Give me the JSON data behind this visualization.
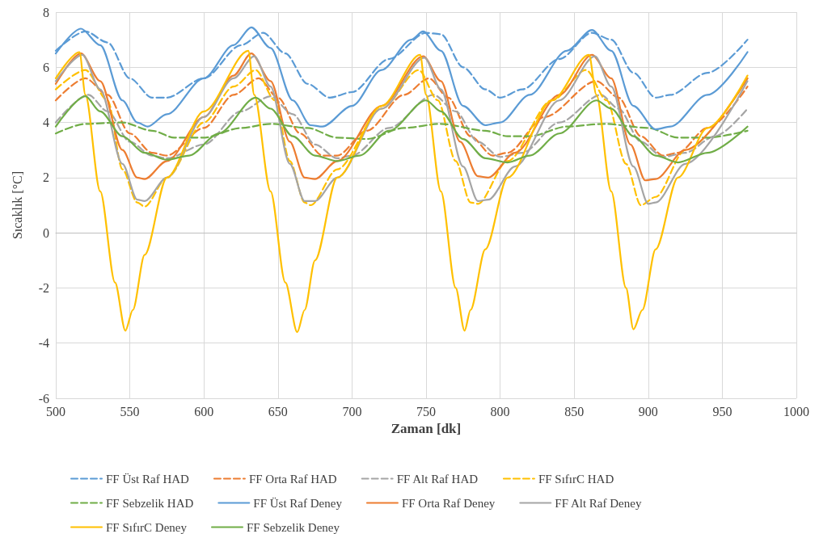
{
  "chart_data": {
    "type": "line",
    "xlabel": "Zaman [dk]",
    "ylabel": "Sıcaklık [°C]",
    "xlim": [
      500,
      1000
    ],
    "xticks": [
      500,
      550,
      600,
      650,
      700,
      750,
      800,
      850,
      900,
      950,
      1000
    ],
    "ylim": [
      -6,
      8
    ],
    "yticks": [
      -6,
      -4,
      -2,
      0,
      2,
      4,
      6,
      8
    ],
    "grid": true,
    "legend": "bottom",
    "marker": "none",
    "series": [
      {
        "name": "FF Üst Raf HAD",
        "color": "#5b9bd5",
        "line_style": "dashed",
        "x": [
          500,
          520,
          535,
          550,
          565,
          575,
          600,
          625,
          640,
          655,
          670,
          685,
          700,
          725,
          750,
          760,
          775,
          790,
          800,
          815,
          840,
          862,
          875,
          890,
          905,
          915,
          940,
          967
        ],
        "values": [
          6.6,
          7.3,
          6.9,
          5.6,
          4.9,
          4.9,
          5.6,
          6.8,
          7.25,
          6.5,
          5.4,
          4.9,
          5.1,
          6.3,
          7.25,
          7.2,
          6.0,
          5.2,
          4.9,
          5.2,
          6.3,
          7.25,
          7.0,
          5.8,
          4.9,
          5.0,
          5.8,
          7.0
        ]
      },
      {
        "name": "FF Orta Raf HAD",
        "color": "#ed7d31",
        "line_style": "dashed",
        "x": [
          500,
          520,
          535,
          550,
          565,
          575,
          600,
          620,
          637,
          650,
          665,
          680,
          690,
          710,
          735,
          752,
          765,
          780,
          795,
          805,
          830,
          865,
          880,
          895,
          910,
          920,
          940,
          967
        ],
        "values": [
          4.8,
          5.6,
          5.0,
          3.6,
          2.9,
          2.8,
          3.8,
          5.0,
          5.6,
          4.9,
          3.6,
          2.8,
          2.8,
          3.7,
          5.0,
          5.6,
          4.9,
          3.5,
          2.8,
          2.9,
          4.2,
          5.5,
          4.9,
          3.5,
          2.8,
          2.9,
          3.8,
          5.3
        ]
      },
      {
        "name": "FF Alt Raf HAD",
        "color": "#a5a5a5",
        "line_style": "dashed",
        "x": [
          500,
          522,
          535,
          550,
          565,
          575,
          600,
          625,
          645,
          660,
          675,
          690,
          700,
          725,
          755,
          770,
          785,
          800,
          815,
          840,
          868,
          880,
          895,
          910,
          925,
          945,
          967
        ],
        "values": [
          4.0,
          5.0,
          4.4,
          3.3,
          2.8,
          2.7,
          3.2,
          4.4,
          4.95,
          4.3,
          3.2,
          2.7,
          2.8,
          3.8,
          5.0,
          4.4,
          3.3,
          2.75,
          2.9,
          4.0,
          5.0,
          4.5,
          3.3,
          2.75,
          2.9,
          3.5,
          4.5
        ]
      },
      {
        "name": "FF SıfırC HAD",
        "color": "#ffc000",
        "line_style": "dashed",
        "x": [
          500,
          520,
          535,
          545,
          555,
          560,
          575,
          600,
          620,
          635,
          648,
          658,
          668,
          672,
          690,
          720,
          745,
          758,
          770,
          780,
          785,
          805,
          835,
          858,
          872,
          885,
          895,
          905,
          925,
          967
        ],
        "values": [
          5.2,
          5.9,
          4.8,
          2.3,
          1.1,
          0.95,
          2.0,
          4.0,
          5.3,
          5.9,
          4.8,
          2.6,
          1.1,
          1.0,
          2.3,
          4.5,
          5.9,
          4.8,
          2.6,
          1.1,
          1.05,
          2.6,
          4.8,
          5.9,
          4.8,
          2.5,
          1.0,
          1.3,
          3.0,
          5.6
        ]
      },
      {
        "name": "FF Sebzelik HAD",
        "color": "#70ad47",
        "line_style": "dashed",
        "x": [
          500,
          520,
          545,
          565,
          580,
          600,
          625,
          645,
          670,
          690,
          710,
          735,
          760,
          790,
          805,
          820,
          845,
          870,
          900,
          920,
          940,
          967
        ],
        "values": [
          3.6,
          3.95,
          4.0,
          3.7,
          3.45,
          3.45,
          3.8,
          3.95,
          3.8,
          3.45,
          3.4,
          3.8,
          3.95,
          3.7,
          3.5,
          3.5,
          3.85,
          3.95,
          3.8,
          3.45,
          3.45,
          3.7
        ]
      },
      {
        "name": "FF Üst Raf Deney",
        "color": "#5b9bd5",
        "line_style": "solid",
        "x": [
          500,
          517,
          530,
          545,
          555,
          562,
          575,
          600,
          620,
          632,
          645,
          660,
          672,
          680,
          700,
          720,
          740,
          748,
          760,
          775,
          790,
          800,
          820,
          845,
          862,
          875,
          890,
          905,
          915,
          940,
          967
        ],
        "values": [
          6.5,
          7.4,
          6.8,
          4.8,
          4.0,
          3.85,
          4.3,
          5.6,
          6.8,
          7.45,
          6.7,
          4.8,
          3.9,
          3.85,
          4.6,
          5.9,
          7.0,
          7.3,
          6.6,
          4.6,
          3.9,
          4.0,
          5.0,
          6.6,
          7.35,
          6.6,
          4.6,
          3.75,
          3.85,
          5.0,
          6.55
        ]
      },
      {
        "name": "FF Orta Raf Deney",
        "color": "#ed7d31",
        "line_style": "solid",
        "x": [
          500,
          517,
          530,
          545,
          555,
          560,
          575,
          600,
          620,
          632,
          645,
          658,
          668,
          675,
          690,
          720,
          748,
          760,
          773,
          785,
          792,
          810,
          840,
          862,
          875,
          888,
          898,
          905,
          925,
          967
        ],
        "values": [
          5.4,
          6.5,
          5.5,
          3.0,
          2.0,
          1.95,
          2.6,
          4.2,
          5.7,
          6.5,
          5.5,
          3.3,
          2.0,
          1.95,
          2.6,
          4.6,
          6.4,
          5.5,
          3.3,
          2.05,
          2.0,
          2.9,
          5.0,
          6.45,
          5.6,
          3.2,
          1.9,
          1.95,
          3.0,
          5.6
        ]
      },
      {
        "name": "FF Alt Raf Deney",
        "color": "#a5a5a5",
        "line_style": "solid",
        "x": [
          500,
          518,
          530,
          545,
          555,
          560,
          575,
          600,
          620,
          634,
          645,
          658,
          668,
          675,
          690,
          720,
          749,
          760,
          775,
          785,
          792,
          810,
          840,
          864,
          875,
          890,
          900,
          905,
          925,
          967
        ],
        "values": [
          5.5,
          6.45,
          5.2,
          2.5,
          1.2,
          1.15,
          2.0,
          4.2,
          5.6,
          6.4,
          5.3,
          2.5,
          1.15,
          1.15,
          2.0,
          4.5,
          6.35,
          5.2,
          2.4,
          1.15,
          1.2,
          2.4,
          4.8,
          6.4,
          5.3,
          2.4,
          1.05,
          1.1,
          2.5,
          5.5
        ]
      },
      {
        "name": "FF SıfırC Deney",
        "color": "#ffc000",
        "line_style": "solid",
        "x": [
          500,
          516,
          520,
          530,
          540,
          547,
          552,
          560,
          575,
          600,
          630,
          634,
          645,
          655,
          663,
          668,
          675,
          690,
          720,
          746,
          750,
          760,
          770,
          776,
          780,
          790,
          805,
          835,
          860,
          865,
          875,
          885,
          890,
          896,
          905,
          920,
          940,
          967
        ],
        "values": [
          5.6,
          6.55,
          5.0,
          1.5,
          -1.8,
          -3.55,
          -2.8,
          -0.8,
          2.0,
          4.4,
          6.6,
          5.0,
          1.5,
          -1.8,
          -3.6,
          -2.8,
          -1.0,
          2.0,
          4.6,
          6.45,
          5.0,
          1.5,
          -2.0,
          -3.55,
          -2.8,
          -0.6,
          2.0,
          4.8,
          6.45,
          5.0,
          1.5,
          -2.0,
          -3.5,
          -2.8,
          -0.6,
          2.0,
          3.8,
          5.7
        ]
      },
      {
        "name": "FF Sebzelik Deney",
        "color": "#70ad47",
        "line_style": "solid",
        "x": [
          500,
          520,
          530,
          545,
          560,
          575,
          590,
          610,
          635,
          645,
          660,
          675,
          690,
          705,
          725,
          750,
          760,
          775,
          790,
          805,
          820,
          840,
          865,
          875,
          890,
          905,
          920,
          940,
          967
        ],
        "values": [
          3.85,
          4.95,
          4.4,
          3.5,
          2.9,
          2.65,
          2.8,
          3.6,
          4.9,
          4.5,
          3.5,
          2.8,
          2.6,
          2.8,
          3.7,
          4.8,
          4.4,
          3.4,
          2.7,
          2.55,
          2.8,
          3.6,
          4.8,
          4.5,
          3.5,
          2.8,
          2.55,
          2.9,
          3.85
        ]
      }
    ]
  }
}
